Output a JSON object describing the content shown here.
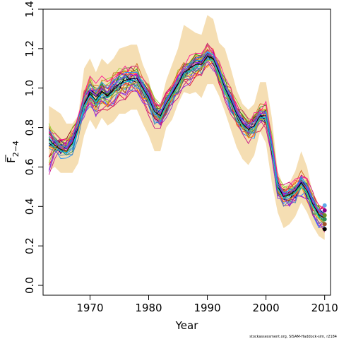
{
  "chart_data": {
    "type": "line",
    "xlabel": "Year",
    "ylabel_main": "F",
    "ylabel_sub": "2−4",
    "credit": "stockassessment.org, SISAM-Haddock-sim, r2184",
    "xlim": [
      1962,
      2011
    ],
    "ylim": [
      -0.05,
      1.4
    ],
    "x_ticks": [
      1970,
      1980,
      1990,
      2000,
      2010
    ],
    "y_ticks": [
      0.0,
      0.2,
      0.4,
      0.6,
      0.8,
      1.0,
      1.2,
      1.4
    ],
    "y_tick_labels": [
      "0.0",
      "0.2",
      "0.4",
      "0.6",
      "0.8",
      "1.0",
      "1.2",
      "1.4"
    ],
    "band_color": "#f5deb3",
    "line_colors": [
      "#000000",
      "#dc143c",
      "#cd1076",
      "#9acd32",
      "#4682b4",
      "#ff8c00",
      "#8a2be2",
      "#2e8b57",
      "#ff1493",
      "#1e90ff",
      "#b8860b",
      "#8b0000",
      "#00ced1",
      "#ff6347",
      "#9400d3",
      "#228b22",
      "#c71585",
      "#556b2f",
      "#d2691e",
      "#00008b"
    ],
    "end_point_colors": [
      "#5fa8e8",
      "#8b008b",
      "#6b8e23",
      "#2e8b57",
      "#a0522d",
      "#000000"
    ],
    "years": [
      1963,
      1964,
      1965,
      1966,
      1967,
      1968,
      1969,
      1970,
      1971,
      1972,
      1973,
      1974,
      1975,
      1976,
      1977,
      1978,
      1979,
      1980,
      1981,
      1982,
      1983,
      1984,
      1985,
      1986,
      1987,
      1988,
      1989,
      1990,
      1991,
      1992,
      1993,
      1994,
      1995,
      1996,
      1997,
      1998,
      1999,
      2000,
      2001,
      2002,
      2003,
      2004,
      2005,
      2006,
      2007,
      2008,
      2009,
      2010
    ],
    "band_upper": [
      0.91,
      0.89,
      0.87,
      0.82,
      0.82,
      0.86,
      1.1,
      1.15,
      1.08,
      1.15,
      1.12,
      1.15,
      1.2,
      1.21,
      1.22,
      1.22,
      1.12,
      1.05,
      0.9,
      0.92,
      1.04,
      1.12,
      1.2,
      1.32,
      1.3,
      1.28,
      1.27,
      1.37,
      1.35,
      1.23,
      1.2,
      1.1,
      0.99,
      0.92,
      0.89,
      0.92,
      1.03,
      1.03,
      0.85,
      0.58,
      0.5,
      0.52,
      0.58,
      0.68,
      0.6,
      0.46,
      0.38,
      0.36
    ],
    "band_lower": [
      0.58,
      0.6,
      0.57,
      0.57,
      0.57,
      0.62,
      0.76,
      0.84,
      0.79,
      0.85,
      0.81,
      0.83,
      0.87,
      0.87,
      0.89,
      0.89,
      0.82,
      0.76,
      0.68,
      0.68,
      0.8,
      0.84,
      0.92,
      0.98,
      0.97,
      0.98,
      0.95,
      1.02,
      1.02,
      0.96,
      0.88,
      0.79,
      0.7,
      0.64,
      0.61,
      0.66,
      0.78,
      0.72,
      0.52,
      0.37,
      0.29,
      0.31,
      0.35,
      0.42,
      0.37,
      0.3,
      0.25,
      0.23
    ],
    "series": [
      {
        "values": [
          0.74,
          0.71,
          0.69,
          0.68,
          0.72,
          0.8,
          0.92,
          0.97,
          0.94,
          0.98,
          0.96,
          0.99,
          1.02,
          1.04,
          1.05,
          1.05,
          1.0,
          0.95,
          0.88,
          0.86,
          0.92,
          0.97,
          1.02,
          1.08,
          1.1,
          1.12,
          1.12,
          1.16,
          1.15,
          1.08,
          1.0,
          0.94,
          0.87,
          0.82,
          0.79,
          0.81,
          0.86,
          0.86,
          0.7,
          0.5,
          0.45,
          0.46,
          0.48,
          0.52,
          0.48,
          0.41,
          0.36,
          0.34
        ]
      },
      {
        "values": [
          0.62,
          0.7,
          0.72,
          0.74,
          0.76,
          0.82,
          0.9,
          0.94,
          0.91,
          0.95,
          0.93,
          0.96,
          0.98,
          1.0,
          1.02,
          1.03,
          0.98,
          0.92,
          0.86,
          0.84,
          0.9,
          0.95,
          1.0,
          1.05,
          1.07,
          1.08,
          1.1,
          1.14,
          1.14,
          1.06,
          0.98,
          0.92,
          0.86,
          0.8,
          0.78,
          0.79,
          0.84,
          0.84,
          0.68,
          0.49,
          0.44,
          0.45,
          0.47,
          0.5,
          0.46,
          0.39,
          0.34,
          0.32
        ]
      },
      {
        "values": [
          0.76,
          0.72,
          0.7,
          0.69,
          0.73,
          0.81,
          0.93,
          0.99,
          0.96,
          1.0,
          0.98,
          1.01,
          1.04,
          1.06,
          1.07,
          1.06,
          1.01,
          0.96,
          0.89,
          0.87,
          0.93,
          0.98,
          1.03,
          1.09,
          1.11,
          1.13,
          1.13,
          1.17,
          1.16,
          1.09,
          1.01,
          0.95,
          0.88,
          0.83,
          0.8,
          0.82,
          0.87,
          0.87,
          0.71,
          0.51,
          0.46,
          0.47,
          0.49,
          0.53,
          0.49,
          0.42,
          0.37,
          0.35
        ]
      },
      {
        "values": [
          0.79,
          0.74,
          0.71,
          0.7,
          0.75,
          0.84,
          0.95,
          1.02,
          0.98,
          1.03,
          1.0,
          1.04,
          1.06,
          1.08,
          1.08,
          1.08,
          1.02,
          0.97,
          0.9,
          0.88,
          0.94,
          0.99,
          1.05,
          1.1,
          1.12,
          1.14,
          1.14,
          1.18,
          1.17,
          1.1,
          1.02,
          0.96,
          0.89,
          0.84,
          0.81,
          0.83,
          0.88,
          0.88,
          0.72,
          0.52,
          0.47,
          0.48,
          0.5,
          0.54,
          0.5,
          0.43,
          0.38,
          0.36
        ]
      },
      {
        "values": [
          0.73,
          0.7,
          0.68,
          0.67,
          0.71,
          0.79,
          0.91,
          0.96,
          0.93,
          0.97,
          0.95,
          0.98,
          1.01,
          1.03,
          1.04,
          1.04,
          0.99,
          0.94,
          0.87,
          0.85,
          0.91,
          0.96,
          1.01,
          1.07,
          1.09,
          1.11,
          1.11,
          1.15,
          1.14,
          1.07,
          0.99,
          0.93,
          0.86,
          0.81,
          0.78,
          0.8,
          0.85,
          0.85,
          0.69,
          0.49,
          0.44,
          0.45,
          0.47,
          0.51,
          0.47,
          0.4,
          0.35,
          0.33
        ]
      }
    ]
  }
}
